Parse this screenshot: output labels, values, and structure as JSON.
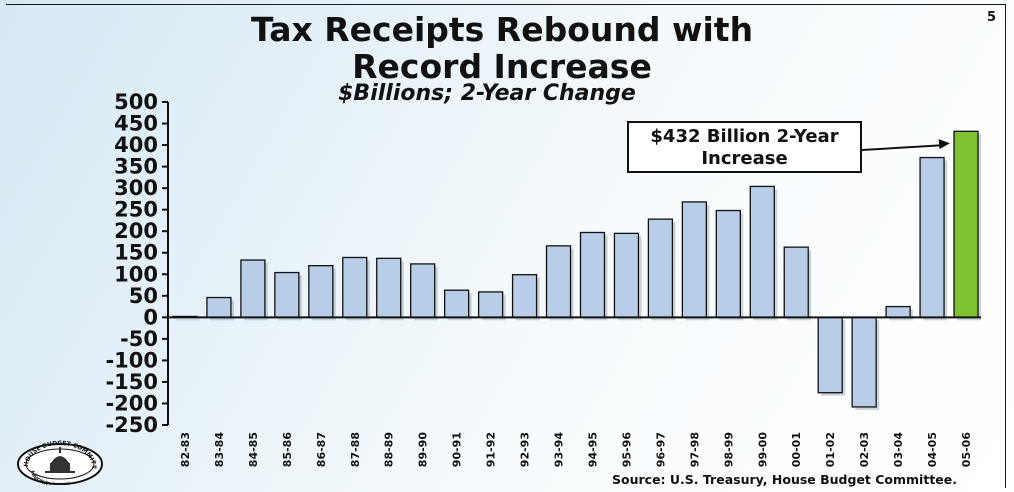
{
  "slide": {
    "number": "5",
    "title_line1": "Tax Receipts Rebound with",
    "title_line2": "Record Increase",
    "subtitle": "$Billions; 2-Year Change",
    "source": "Source:  U.S. Treasury, House Budget Committee.",
    "callout": "$432 Billion 2-Year Increase",
    "logo_text": "HOUSE BUDGET COMMITTEE • MAJORITY STAFF"
  },
  "colors": {
    "bar": "#b7cde8",
    "highlight_bar": "#7ec232",
    "bar_outline": "#111111"
  },
  "chart_data": {
    "type": "bar",
    "title": "Tax Receipts Rebound with Record Increase",
    "subtitle": "$Billions; 2-Year Change",
    "categories": [
      "82-83",
      "83-84",
      "84-85",
      "85-86",
      "86-87",
      "87-88",
      "88-89",
      "89-90",
      "90-91",
      "91-92",
      "92-93",
      "93-94",
      "94-95",
      "95-96",
      "96-97",
      "97-98",
      "98-99",
      "99-00",
      "00-01",
      "01-02",
      "02-03",
      "03-04",
      "04-05",
      "05-06"
    ],
    "values": [
      2,
      46,
      133,
      104,
      120,
      139,
      137,
      124,
      63,
      59,
      99,
      166,
      197,
      195,
      228,
      268,
      248,
      304,
      163,
      -175,
      -208,
      25,
      371,
      432
    ],
    "highlight_index": 23,
    "ylim": [
      -250,
      500
    ],
    "yticks": [
      500,
      450,
      400,
      350,
      300,
      250,
      200,
      150,
      100,
      50,
      0,
      -50,
      -100,
      -150,
      -200,
      -250
    ],
    "ytick_labels": [
      "500",
      "450",
      "400",
      "350",
      "300",
      "250",
      "200",
      "150",
      "100",
      "50",
      "0",
      "-50",
      "-100",
      "-150",
      "-200",
      "-250"
    ],
    "xlabel": "",
    "ylabel": "",
    "grid": false,
    "annotations": [
      {
        "text": "$432 Billion 2-Year Increase",
        "points_to": "05-06"
      }
    ]
  }
}
